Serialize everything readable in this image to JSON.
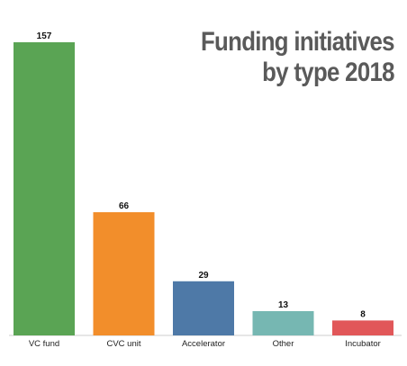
{
  "chart_data": {
    "type": "bar",
    "title_lines": [
      "Funding initiatives",
      "by type 2018"
    ],
    "categories": [
      "VC fund",
      "CVC unit",
      "Accelerator",
      "Other",
      "Incubator"
    ],
    "values": [
      157,
      66,
      29,
      13,
      8
    ],
    "colors": [
      "#5aa454",
      "#f28e2b",
      "#4e79a7",
      "#76b7b2",
      "#e15759"
    ],
    "xlabel": "",
    "ylabel": "",
    "ylim": [
      0,
      157
    ],
    "grid": false,
    "legend": "none",
    "data_labels": true
  }
}
